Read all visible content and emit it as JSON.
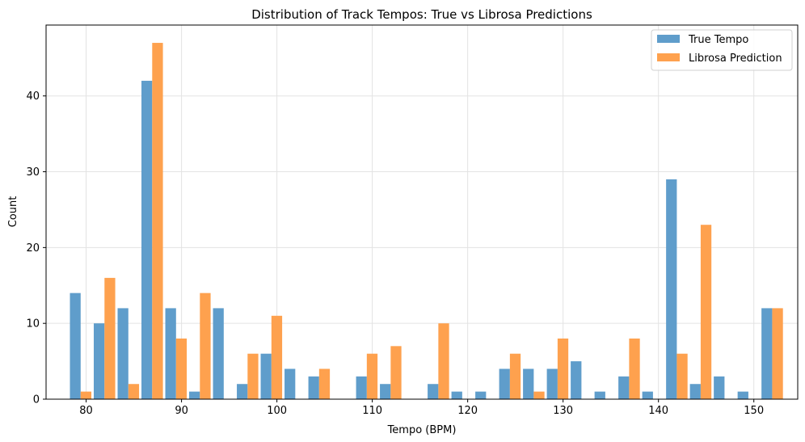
{
  "chart_data": {
    "type": "bar",
    "title": "Distribution of Track Tempos: True vs Librosa Predictions",
    "xlabel": "Tempo (BPM)",
    "ylabel": "Count",
    "xlim": [
      75.8,
      154.6
    ],
    "ylim": [
      0,
      49.35
    ],
    "xticks": [
      80,
      90,
      100,
      110,
      120,
      130,
      140,
      150
    ],
    "yticks": [
      0,
      10,
      20,
      30,
      40
    ],
    "grid": true,
    "legend_position": "top-right",
    "bin_start": 78.3,
    "bin_width": 2.5,
    "series": [
      {
        "name": "True Tempo",
        "color": "#5f9dcb",
        "values": [
          14,
          10,
          12,
          42,
          12,
          1,
          12,
          2,
          6,
          4,
          3,
          0,
          3,
          2,
          0,
          2,
          1,
          1,
          4,
          4,
          4,
          5,
          1,
          3,
          1,
          29,
          2,
          3,
          1,
          12
        ]
      },
      {
        "name": "Librosa Prediction",
        "color": "#fea14e",
        "values": [
          1,
          16,
          2,
          47,
          8,
          14,
          0,
          6,
          11,
          0,
          4,
          0,
          6,
          7,
          0,
          10,
          0,
          0,
          6,
          1,
          8,
          0,
          0,
          8,
          0,
          6,
          23,
          0,
          0,
          12
        ]
      }
    ]
  }
}
